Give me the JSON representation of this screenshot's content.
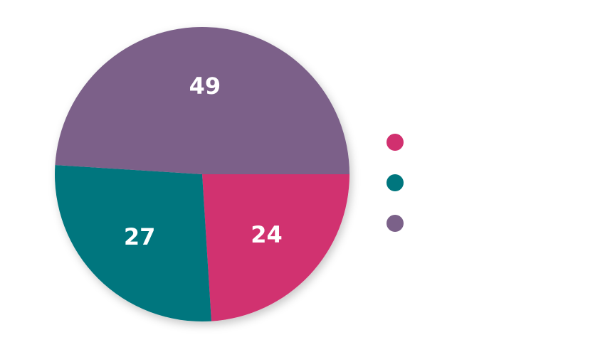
{
  "chart_data": {
    "type": "pie",
    "slices": [
      {
        "value": 24,
        "label": "24",
        "color": "#d1306f"
      },
      {
        "value": 27,
        "label": "27",
        "color": "#00767e"
      },
      {
        "value": 49,
        "label": "49",
        "color": "#7b6189"
      }
    ],
    "legend": {
      "placement": "right",
      "entries": [
        "",
        "",
        ""
      ]
    },
    "start": "east",
    "direction": "clockwise"
  }
}
